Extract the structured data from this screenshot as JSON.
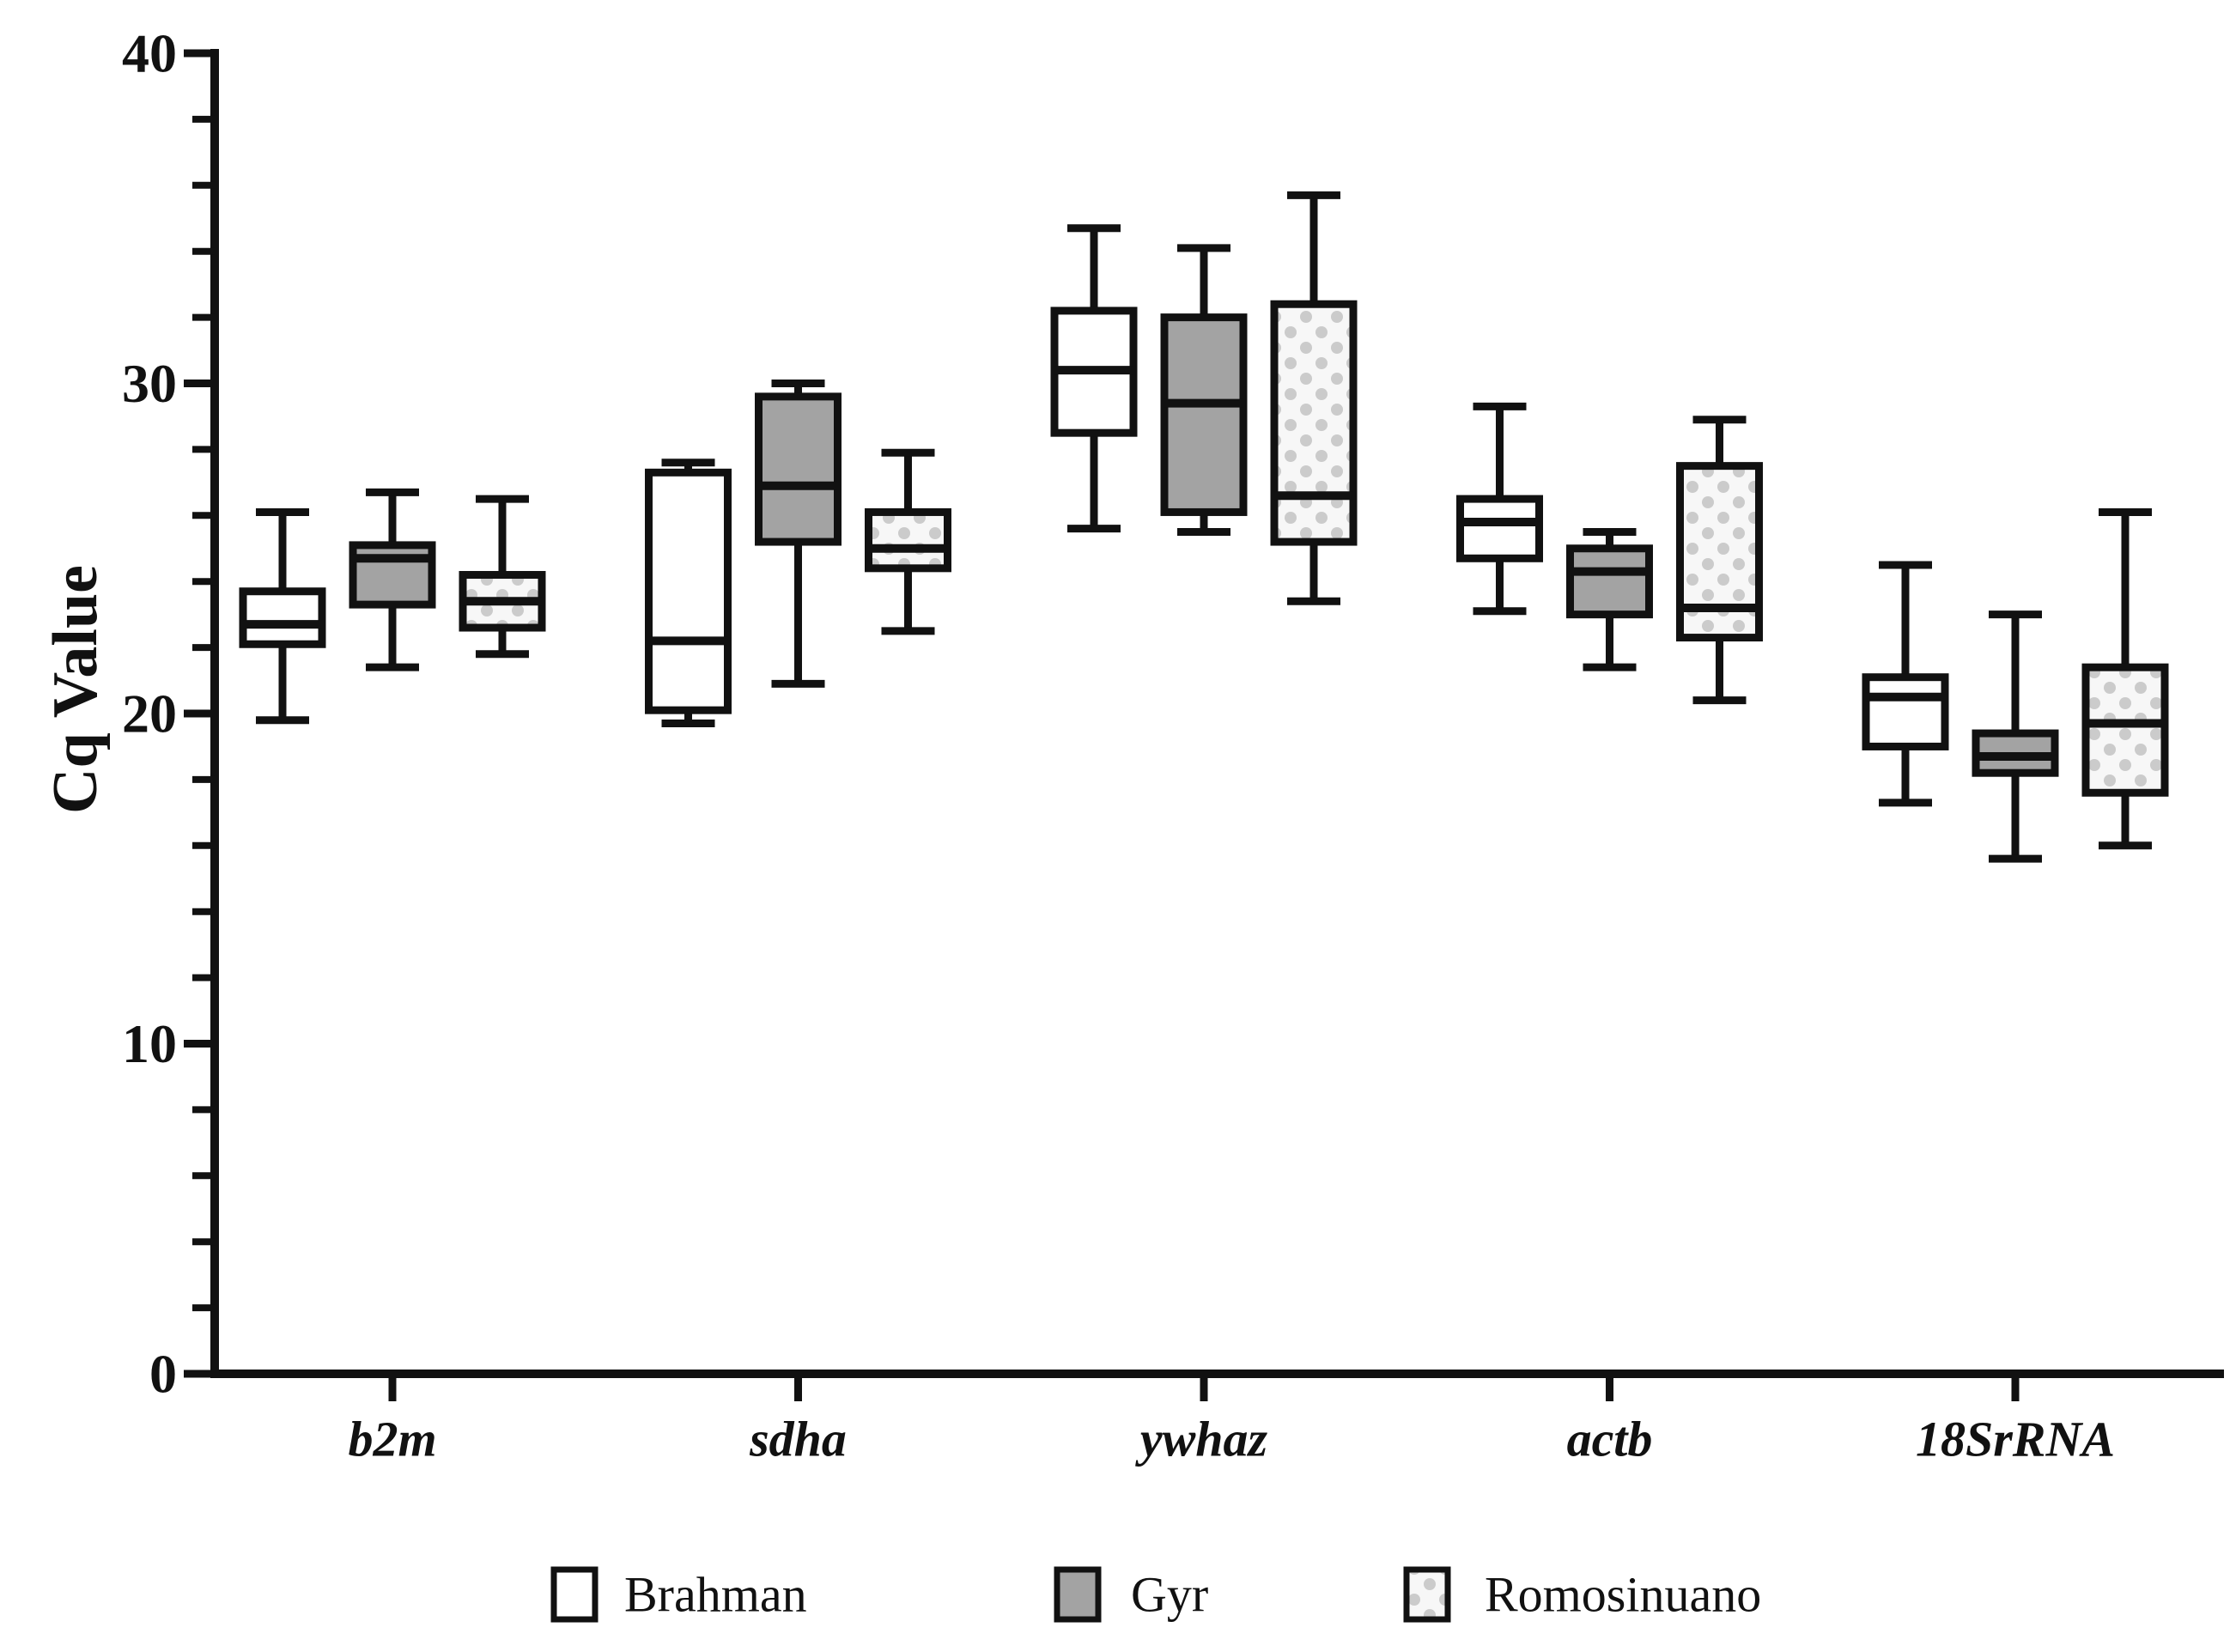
{
  "chart_data": {
    "type": "boxplot",
    "title": "",
    "xlabel": "",
    "ylabel": "Cq Value",
    "ylim": [
      0,
      40
    ],
    "yticks_major": [
      0,
      10,
      20,
      30,
      40
    ],
    "ytick_minor_step": 2,
    "grid": "off",
    "legend_position": "bottom",
    "box_format": [
      "min",
      "q1",
      "median",
      "q3",
      "max"
    ],
    "categories": [
      "b2m",
      "sdha",
      "ywhaz",
      "actb",
      "18SrRNA"
    ],
    "series": [
      {
        "name": "Brahman",
        "fill_type": "white",
        "boxes": [
          [
            19.8,
            22.1,
            22.7,
            23.7,
            26.1
          ],
          [
            19.7,
            20.1,
            22.2,
            27.3,
            27.6
          ],
          [
            25.6,
            28.5,
            30.4,
            32.2,
            34.7
          ],
          [
            23.1,
            24.7,
            25.8,
            26.5,
            29.3
          ],
          [
            17.3,
            19.0,
            20.5,
            21.1,
            24.5
          ]
        ]
      },
      {
        "name": "Gyr",
        "fill_type": "gray",
        "boxes": [
          [
            21.4,
            23.3,
            24.7,
            25.1,
            26.7
          ],
          [
            20.9,
            25.2,
            26.9,
            29.6,
            30.0
          ],
          [
            25.5,
            26.1,
            29.4,
            32.0,
            34.1
          ],
          [
            21.4,
            23.0,
            24.3,
            25.0,
            25.5
          ],
          [
            15.6,
            18.2,
            18.7,
            19.4,
            23.0
          ]
        ]
      },
      {
        "name": "Romosinuano",
        "fill_type": "dots",
        "boxes": [
          [
            21.8,
            22.6,
            23.4,
            24.2,
            26.5
          ],
          [
            22.5,
            24.4,
            25.0,
            26.1,
            27.9
          ],
          [
            23.4,
            25.2,
            26.6,
            32.4,
            35.7
          ],
          [
            20.4,
            22.3,
            23.2,
            27.5,
            28.9
          ],
          [
            16.0,
            17.6,
            19.7,
            21.4,
            26.1
          ]
        ]
      }
    ],
    "colors": {
      "line": "#111111",
      "white_fill": "#ffffff",
      "gray_fill": "#a3a3a3",
      "dots_bg": "#f7f7f7",
      "dots_dot": "#cbcbcb",
      "background": "#ffffff"
    }
  }
}
